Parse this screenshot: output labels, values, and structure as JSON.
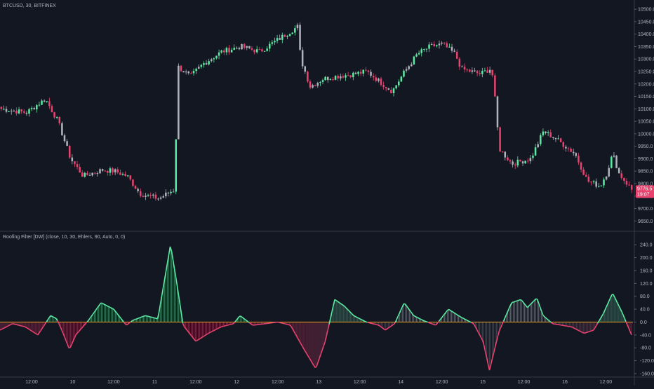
{
  "chart_data": [
    {
      "type": "candlestick",
      "title": "BTCUSD, 30, BITFINEX",
      "ylim": [
        9620,
        10520
      ],
      "y_ticks": [
        "10500.0",
        "10450.0",
        "10400.0",
        "10350.0",
        "10300.0",
        "10250.0",
        "10200.0",
        "10150.0",
        "10100.0",
        "10050.0",
        "10000.0",
        "9950.0",
        "9900.0",
        "9850.0",
        "9800.0",
        "9750.0",
        "9700.0",
        "9650.0"
      ],
      "x_ticks": [
        "12:00",
        "10",
        "12:00",
        "11",
        "12:00",
        "12",
        "12:00",
        "13",
        "12:00",
        "14",
        "12:00",
        "15",
        "12:00",
        "16",
        "12:00"
      ],
      "price_badge": {
        "value": "9776.5",
        "time": "19:07"
      },
      "close_anchors": [
        [
          0,
          10100
        ],
        [
          0.04,
          10085
        ],
        [
          0.07,
          10140
        ],
        [
          0.09,
          10050
        ],
        [
          0.11,
          9900
        ],
        [
          0.13,
          9830
        ],
        [
          0.16,
          9855
        ],
        [
          0.18,
          9850
        ],
        [
          0.2,
          9830
        ],
        [
          0.22,
          9760
        ],
        [
          0.25,
          9740
        ],
        [
          0.27,
          9770
        ],
        [
          0.275,
          9775
        ],
        [
          0.28,
          10270
        ],
        [
          0.3,
          10230
        ],
        [
          0.32,
          10280
        ],
        [
          0.35,
          10330
        ],
        [
          0.38,
          10350
        ],
        [
          0.41,
          10330
        ],
        [
          0.44,
          10380
        ],
        [
          0.47,
          10430
        ],
        [
          0.475,
          10300
        ],
        [
          0.49,
          10190
        ],
        [
          0.51,
          10220
        ],
        [
          0.53,
          10230
        ],
        [
          0.56,
          10240
        ],
        [
          0.58,
          10250
        ],
        [
          0.6,
          10210
        ],
        [
          0.62,
          10170
        ],
        [
          0.64,
          10250
        ],
        [
          0.66,
          10320
        ],
        [
          0.68,
          10350
        ],
        [
          0.7,
          10360
        ],
        [
          0.72,
          10320
        ],
        [
          0.73,
          10260
        ],
        [
          0.76,
          10240
        ],
        [
          0.775,
          10260
        ],
        [
          0.78,
          10230
        ],
        [
          0.79,
          9940
        ],
        [
          0.81,
          9880
        ],
        [
          0.84,
          9900
        ],
        [
          0.86,
          10010
        ],
        [
          0.88,
          9980
        ],
        [
          0.91,
          9920
        ],
        [
          0.93,
          9810
        ],
        [
          0.95,
          9790
        ],
        [
          0.96,
          9840
        ],
        [
          0.97,
          9920
        ],
        [
          0.98,
          9840
        ],
        [
          1.0,
          9776
        ]
      ],
      "colors": {
        "up": "#5ceaa2",
        "down": "#e8426f",
        "neutral": "#b0b3bb"
      }
    },
    {
      "type": "area",
      "title": "Roofing Filter [DW] (close, 10, 30, Ehlers, 90, Auto, 0, 0)",
      "ylim": [
        -160,
        260
      ],
      "y_ticks": [
        "240.0",
        "200.0",
        "160.0",
        "120.0",
        "80.0",
        "40.0",
        "0.0",
        "-40.0",
        "-80.0",
        "-120.0",
        "-160.0"
      ],
      "zero_line_color": "#f0a020",
      "anchors": [
        [
          0,
          -25
        ],
        [
          0.02,
          -5
        ],
        [
          0.04,
          -15
        ],
        [
          0.06,
          -40
        ],
        [
          0.08,
          20
        ],
        [
          0.09,
          10
        ],
        [
          0.1,
          -35
        ],
        [
          0.11,
          -85
        ],
        [
          0.12,
          -40
        ],
        [
          0.14,
          5
        ],
        [
          0.16,
          60
        ],
        [
          0.18,
          40
        ],
        [
          0.2,
          -10
        ],
        [
          0.21,
          5
        ],
        [
          0.23,
          20
        ],
        [
          0.25,
          10
        ],
        [
          0.27,
          240
        ],
        [
          0.28,
          120
        ],
        [
          0.29,
          -10
        ],
        [
          0.31,
          -60
        ],
        [
          0.33,
          -35
        ],
        [
          0.35,
          -15
        ],
        [
          0.37,
          -5
        ],
        [
          0.38,
          20
        ],
        [
          0.4,
          -10
        ],
        [
          0.42,
          -5
        ],
        [
          0.44,
          0
        ],
        [
          0.46,
          -10
        ],
        [
          0.48,
          -80
        ],
        [
          0.5,
          -145
        ],
        [
          0.515,
          -60
        ],
        [
          0.53,
          70
        ],
        [
          0.545,
          50
        ],
        [
          0.56,
          20
        ],
        [
          0.58,
          0
        ],
        [
          0.6,
          -10
        ],
        [
          0.61,
          -25
        ],
        [
          0.625,
          -5
        ],
        [
          0.64,
          60
        ],
        [
          0.655,
          20
        ],
        [
          0.67,
          5
        ],
        [
          0.69,
          -10
        ],
        [
          0.71,
          40
        ],
        [
          0.73,
          15
        ],
        [
          0.75,
          -5
        ],
        [
          0.765,
          -60
        ],
        [
          0.775,
          -150
        ],
        [
          0.79,
          -30
        ],
        [
          0.81,
          60
        ],
        [
          0.825,
          70
        ],
        [
          0.835,
          45
        ],
        [
          0.85,
          75
        ],
        [
          0.86,
          20
        ],
        [
          0.875,
          -5
        ],
        [
          0.89,
          -10
        ],
        [
          0.905,
          -15
        ],
        [
          0.925,
          -35
        ],
        [
          0.94,
          -25
        ],
        [
          0.955,
          25
        ],
        [
          0.97,
          90
        ],
        [
          0.985,
          30
        ],
        [
          1.0,
          -40
        ]
      ],
      "colors": {
        "pos": "#5ceaa2",
        "neg": "#e8426f"
      }
    }
  ]
}
